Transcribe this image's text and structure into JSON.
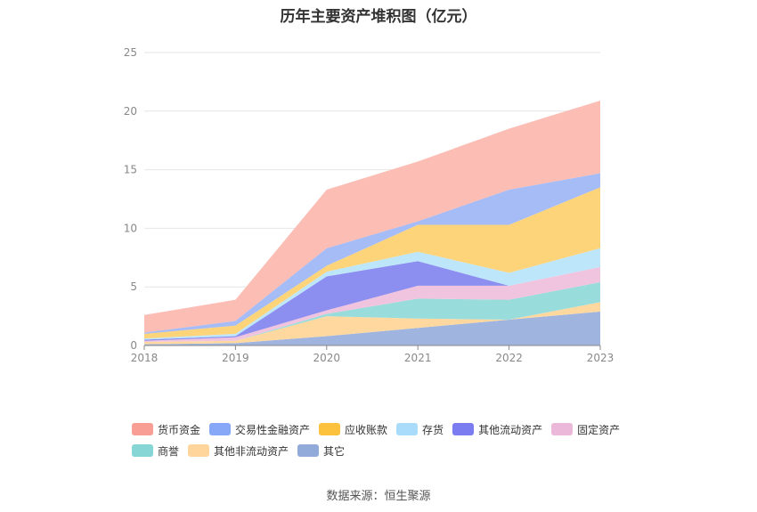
{
  "title": "历年主要资产堆积图（亿元）",
  "source": "数据来源：恒生聚源",
  "chart_data": {
    "type": "area",
    "stacked": true,
    "categories": [
      "2018",
      "2019",
      "2020",
      "2021",
      "2022",
      "2023"
    ],
    "ylim": [
      0,
      25
    ],
    "yticks": [
      0,
      5,
      10,
      15,
      20,
      25
    ],
    "grid": true,
    "legend_position": "bottom",
    "series": [
      {
        "name": "其它",
        "color": "#9fb5e0",
        "values": [
          0.1,
          0.2,
          0.8,
          1.5,
          2.2,
          2.9
        ]
      },
      {
        "name": "其他非流动资产",
        "color": "#ffd8a0",
        "values": [
          0.2,
          0.2,
          1.7,
          0.8,
          0.0,
          0.8
        ]
      },
      {
        "name": "商誉",
        "color": "#99dcdc",
        "values": [
          0.0,
          0.0,
          0.2,
          1.7,
          1.7,
          1.7
        ]
      },
      {
        "name": "固定资产",
        "color": "#f0c4de",
        "values": [
          0.1,
          0.3,
          0.3,
          1.1,
          1.2,
          1.3
        ]
      },
      {
        "name": "其他流动资产",
        "color": "#8c8ef0",
        "values": [
          0.1,
          0.1,
          2.9,
          2.1,
          0.0,
          0.0
        ]
      },
      {
        "name": "存货",
        "color": "#bde6fa",
        "values": [
          0.1,
          0.2,
          0.4,
          0.8,
          1.1,
          1.6
        ]
      },
      {
        "name": "应收账款",
        "color": "#fed47a",
        "values": [
          0.4,
          0.7,
          0.5,
          2.3,
          4.1,
          5.2
        ]
      },
      {
        "name": "交易性金融资产",
        "color": "#a6bcf6",
        "values": [
          0.1,
          0.4,
          1.5,
          0.3,
          3.0,
          1.2
        ]
      },
      {
        "name": "货币资金",
        "color": "#fbbdb4",
        "values": [
          1.5,
          1.8,
          5.0,
          5.1,
          5.2,
          6.2
        ]
      }
    ]
  },
  "legend": [
    {
      "name": "货币资金",
      "color": "#f89e94"
    },
    {
      "name": "交易性金融资产",
      "color": "#86a8f6"
    },
    {
      "name": "应收账款",
      "color": "#fdc23d"
    },
    {
      "name": "存货",
      "color": "#a9dcfa"
    },
    {
      "name": "其他流动资产",
      "color": "#7b7cf0"
    },
    {
      "name": "固定资产",
      "color": "#ebb8da"
    },
    {
      "name": "商誉",
      "color": "#86d6d6"
    },
    {
      "name": "其他非流动资产",
      "color": "#ffd59c"
    },
    {
      "name": "其它",
      "color": "#92aad9"
    }
  ]
}
